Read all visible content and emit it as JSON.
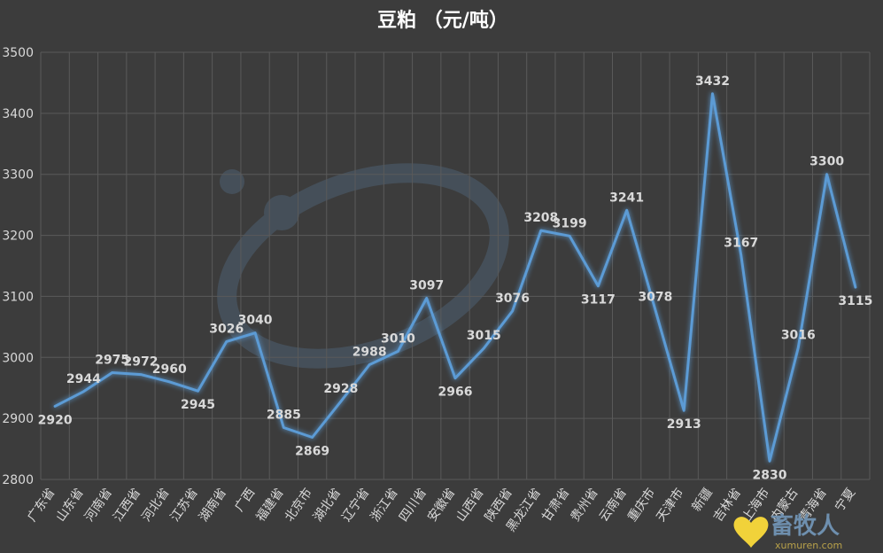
{
  "chart_data": {
    "type": "line",
    "title": "豆粕 （元/吨）",
    "xlabel": "",
    "ylabel": "",
    "ylim": [
      2800,
      3500
    ],
    "yticks": [
      2800,
      2900,
      3000,
      3100,
      3200,
      3300,
      3400,
      3500
    ],
    "grid": true,
    "legend": "none",
    "line_color": "#5b9bd5",
    "categories": [
      "广东省",
      "山东省",
      "河南省",
      "江西省",
      "河北省",
      "江苏省",
      "湖南省",
      "广西",
      "福建省",
      "北京市",
      "湖北省",
      "辽宁省",
      "浙江省",
      "四川省",
      "安徽省",
      "山西省",
      "陕西省",
      "黑龙江省",
      "甘肃省",
      "贵州省",
      "云南省",
      "重庆市",
      "天津市",
      "新疆",
      "吉林省",
      "上海市",
      "内蒙古",
      "青海省",
      "宁夏"
    ],
    "series": [
      {
        "values": [
          2920,
          2944,
          2975,
          2972,
          2960,
          2945,
          3026,
          3040,
          2885,
          2869,
          2928,
          2988,
          3010,
          3097,
          2966,
          3015,
          3076,
          3208,
          3199,
          3117,
          3241,
          3078,
          2913,
          3432,
          3167,
          2830,
          3016,
          3300,
          3115
        ]
      }
    ]
  },
  "watermark": {
    "text": "畜牧人",
    "url": "xumuren.com"
  }
}
